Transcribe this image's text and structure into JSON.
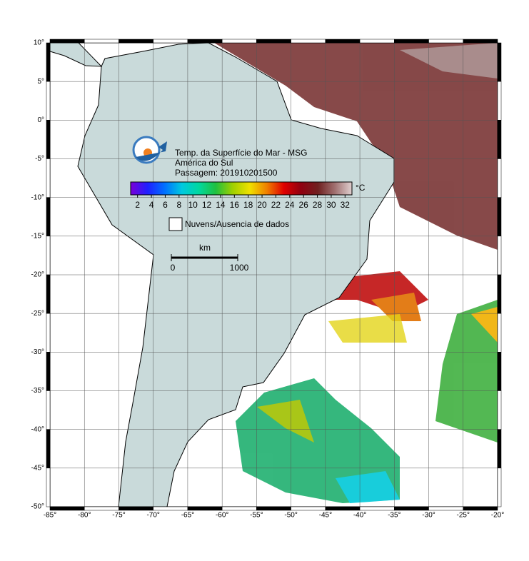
{
  "header": {
    "title": "Temp. da Superfície do Mar - MSG",
    "region": "América do Sul",
    "pass": "Passagem: 201910201500"
  },
  "colorbar": {
    "lim": [
      1,
      33
    ],
    "ticks": [
      2,
      4,
      6,
      8,
      10,
      12,
      14,
      16,
      18,
      20,
      22,
      24,
      26,
      28,
      30,
      32
    ],
    "unit": "°C",
    "colors": [
      "#7a00d8",
      "#2020ff",
      "#0070ff",
      "#00c8e0",
      "#00d8a0",
      "#20c040",
      "#a0d000",
      "#f0e000",
      "#f08000",
      "#e00000",
      "#900010",
      "#702020",
      "#a07070",
      "#e0d0d0"
    ]
  },
  "legend": {
    "clouds": "Nuvens/Ausencia de dados"
  },
  "scale": {
    "unit": "km",
    "ticks": [
      0,
      1000
    ]
  },
  "map": {
    "xlim": [
      -85,
      -20
    ],
    "ylim": [
      -50,
      10
    ],
    "grid": true,
    "xticks": [
      {
        "value": -85,
        "label": "-85°"
      },
      {
        "value": -80,
        "label": "-80°"
      },
      {
        "value": -75,
        "label": "-75°"
      },
      {
        "value": -70,
        "label": "-70°"
      },
      {
        "value": -65,
        "label": "-65°"
      },
      {
        "value": -60,
        "label": "-60°"
      },
      {
        "value": -55,
        "label": "-55°"
      },
      {
        "value": -50,
        "label": "-50°"
      },
      {
        "value": -45,
        "label": "-45°"
      },
      {
        "value": -40,
        "label": "-40°"
      },
      {
        "value": -35,
        "label": "-35°"
      },
      {
        "value": -30,
        "label": "-30°"
      },
      {
        "value": -25,
        "label": "-25°"
      },
      {
        "value": -20,
        "label": "-20°"
      }
    ],
    "yticks": [
      {
        "value": 10,
        "label": "10°"
      },
      {
        "value": 5,
        "label": "5°"
      },
      {
        "value": 0,
        "label": "0°"
      },
      {
        "value": -5,
        "label": "-5°"
      },
      {
        "value": -10,
        "label": "-10°"
      },
      {
        "value": -15,
        "label": "-15°"
      },
      {
        "value": -20,
        "label": "-20°"
      },
      {
        "value": -25,
        "label": "-25°"
      },
      {
        "value": -30,
        "label": "-30°"
      },
      {
        "value": -35,
        "label": "-35°"
      },
      {
        "value": -40,
        "label": "-40°"
      },
      {
        "value": -45,
        "label": "-45°"
      },
      {
        "value": -50,
        "label": "-50°"
      }
    ]
  }
}
